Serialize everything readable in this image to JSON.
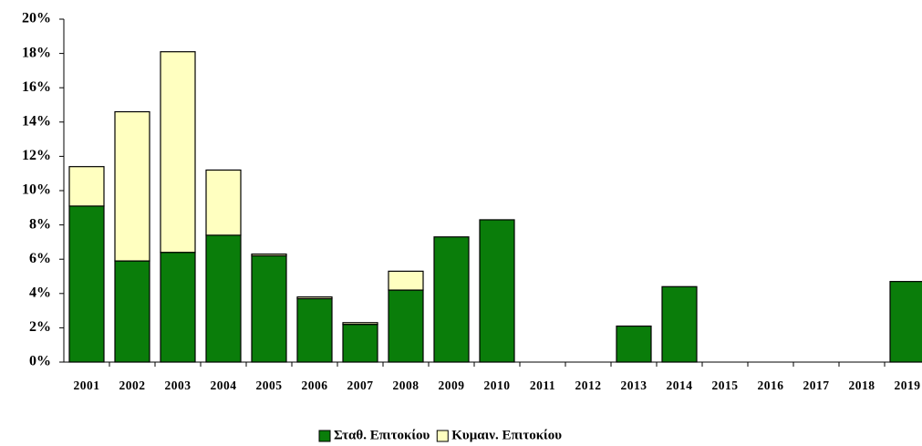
{
  "chart_data": {
    "type": "bar",
    "stacked": true,
    "categories": [
      "2001",
      "2002",
      "2003",
      "2004",
      "2005",
      "2006",
      "2007",
      "2008",
      "2009",
      "2010",
      "2011",
      "2012",
      "2013",
      "2014",
      "2015",
      "2016",
      "2017",
      "2018",
      "2019"
    ],
    "series": [
      {
        "name": "Σταθ. Επιτοκίου",
        "color": "#0a7d0a",
        "values": [
          9.1,
          5.9,
          6.4,
          7.4,
          6.2,
          3.7,
          2.2,
          4.2,
          7.3,
          8.3,
          0,
          0,
          2.1,
          4.4,
          0,
          0,
          0,
          0,
          4.7
        ]
      },
      {
        "name": "Κυμαιν. Επιτοκίου",
        "color": "#ffffc0",
        "values": [
          2.3,
          8.7,
          11.7,
          3.8,
          0.1,
          0.1,
          0.1,
          1.1,
          0,
          0,
          0,
          0,
          0,
          0,
          0,
          0,
          0,
          0,
          0
        ]
      }
    ],
    "ylim": [
      0,
      20
    ],
    "yticks": [
      {
        "value": 0,
        "label": "0%"
      },
      {
        "value": 2,
        "label": "2%"
      },
      {
        "value": 4,
        "label": "4%"
      },
      {
        "value": 6,
        "label": "6%"
      },
      {
        "value": 8,
        "label": "8%"
      },
      {
        "value": 10,
        "label": "10%"
      },
      {
        "value": 12,
        "label": "12%"
      },
      {
        "value": 14,
        "label": "14%"
      },
      {
        "value": 16,
        "label": "16%"
      },
      {
        "value": 18,
        "label": "18%"
      },
      {
        "value": 20,
        "label": "20%"
      }
    ],
    "grid": false,
    "legend": "bottom"
  }
}
